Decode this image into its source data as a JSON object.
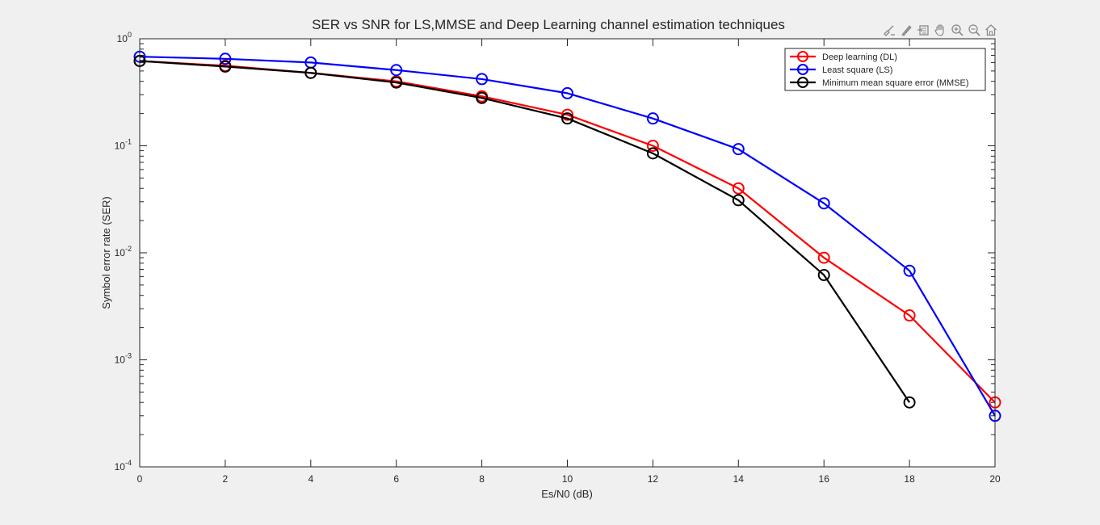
{
  "toolbar": {
    "icons": [
      "brush-icon",
      "data-tips-icon",
      "rotate-icon",
      "pan-icon",
      "zoom-in-icon",
      "zoom-out-icon",
      "home-icon"
    ]
  },
  "colors": {
    "dl": "#ff0000",
    "ls": "#0000ff",
    "mmse": "#000000",
    "axes_bg": "#ffffff",
    "figure_bg": "#f0f0f0"
  },
  "chart_data": {
    "type": "line",
    "title": "SER vs SNR for LS,MMSE and Deep Learning channel estimation techniques",
    "xlabel": "Es/N0 (dB)",
    "ylabel": "Symbol error rate (SER)",
    "xlim": [
      0,
      20
    ],
    "ylim": [
      0.0001,
      1
    ],
    "yscale": "log",
    "xticks": [
      0,
      2,
      4,
      6,
      8,
      10,
      12,
      14,
      16,
      18,
      20
    ],
    "xtick_labels": [
      "0",
      "2",
      "4",
      "6",
      "8",
      "10",
      "12",
      "14",
      "16",
      "18",
      "20"
    ],
    "yticks": [
      {
        "value": 1,
        "base": "10",
        "exp": "0"
      },
      {
        "value": 0.1,
        "base": "10",
        "exp": "-1"
      },
      {
        "value": 0.01,
        "base": "10",
        "exp": "-2"
      },
      {
        "value": 0.001,
        "base": "10",
        "exp": "-3"
      },
      {
        "value": 0.0001,
        "base": "10",
        "exp": "-4"
      }
    ],
    "grid": false,
    "legend_position": "top-right",
    "series": [
      {
        "name": "Deep learning (DL)",
        "color": "#ff0000",
        "marker": "circle",
        "x": [
          0,
          2,
          4,
          6,
          8,
          10,
          12,
          14,
          16,
          18,
          20
        ],
        "y": [
          0.62,
          0.56,
          0.48,
          0.4,
          0.29,
          0.195,
          0.1,
          0.04,
          0.009,
          0.0026,
          0.0004
        ]
      },
      {
        "name": "Least square (LS)",
        "color": "#0000ff",
        "marker": "circle",
        "x": [
          0,
          2,
          4,
          6,
          8,
          10,
          12,
          14,
          16,
          18,
          20
        ],
        "y": [
          0.68,
          0.65,
          0.6,
          0.51,
          0.42,
          0.31,
          0.18,
          0.093,
          0.029,
          0.0068,
          0.0003
        ]
      },
      {
        "name": "Minimum mean square error (MMSE)",
        "color": "#000000",
        "marker": "circle",
        "x": [
          0,
          2,
          4,
          6,
          8,
          10,
          12,
          14,
          16,
          18
        ],
        "y": [
          0.62,
          0.55,
          0.48,
          0.39,
          0.28,
          0.18,
          0.085,
          0.031,
          0.0062,
          0.0004
        ]
      }
    ]
  }
}
